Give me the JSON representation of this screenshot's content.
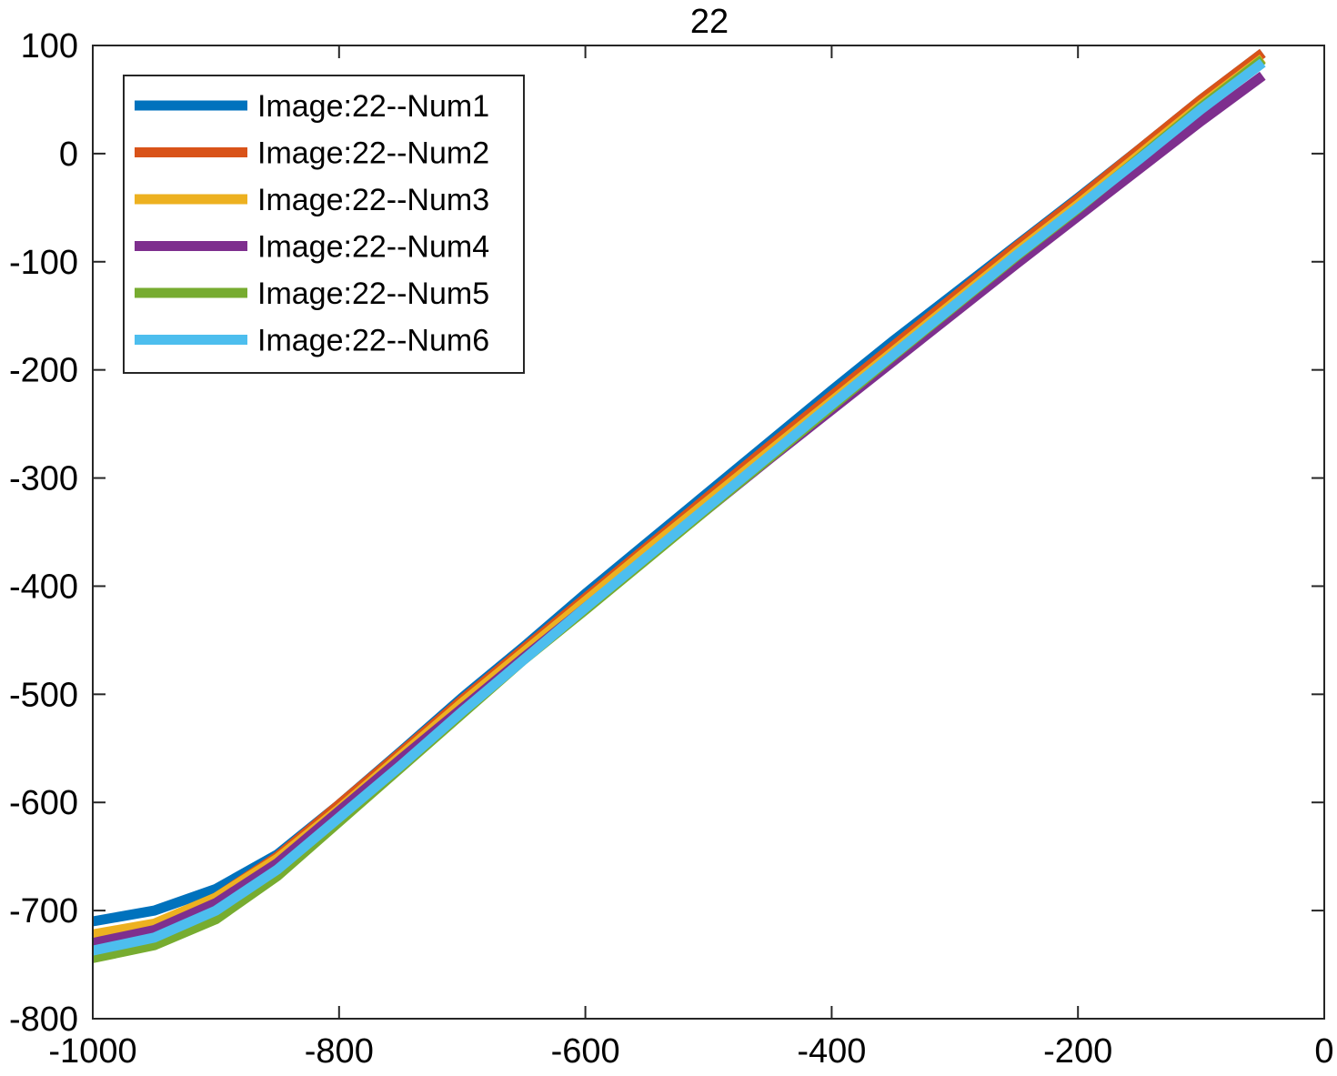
{
  "chart_data": {
    "type": "line",
    "title": "22",
    "xlabel": "",
    "ylabel": "",
    "xlim": [
      -1000,
      0
    ],
    "ylim": [
      -800,
      100
    ],
    "xticks": [
      -1000,
      -800,
      -600,
      -400,
      -200,
      0
    ],
    "yticks": [
      100,
      0,
      -100,
      -200,
      -300,
      -400,
      -500,
      -600,
      -700,
      -800
    ],
    "x": [
      -1000,
      -950,
      -900,
      -850,
      -800,
      -750,
      -700,
      -650,
      -600,
      -550,
      -500,
      -450,
      -400,
      -350,
      -300,
      -250,
      -200,
      -150,
      -100,
      -50
    ],
    "legend_position": "top-left",
    "grid": false,
    "series": [
      {
        "name": "Image:22--Num1",
        "color": "#0072BD",
        "values": [
          -710,
          -700,
          -680,
          -648,
          -602,
          -553,
          -503,
          -456,
          -407,
          -360,
          -313,
          -266,
          -219,
          -173,
          -129,
          -85,
          -41,
          4,
          50,
          93
        ]
      },
      {
        "name": "Image:22--Num2",
        "color": "#D95319",
        "values": [
          -726,
          -714,
          -688,
          -650,
          -602,
          -554,
          -505,
          -458,
          -411,
          -364,
          -317,
          -270,
          -224,
          -178,
          -132,
          -86,
          -42,
          4,
          50,
          93
        ]
      },
      {
        "name": "Image:22--Num3",
        "color": "#EDB120",
        "values": [
          -722,
          -712,
          -688,
          -652,
          -606,
          -557,
          -508,
          -461,
          -414,
          -367,
          -321,
          -275,
          -229,
          -183,
          -137,
          -91,
          -47,
          -1,
          45,
          88
        ]
      },
      {
        "name": "Image:22--Num4",
        "color": "#7E2F8E",
        "values": [
          -730,
          -718,
          -693,
          -656,
          -608,
          -560,
          -513,
          -466,
          -420,
          -374,
          -328,
          -282,
          -237,
          -192,
          -147,
          -102,
          -58,
          -14,
          30,
          72
        ]
      },
      {
        "name": "Image:22--Num5",
        "color": "#77AC30",
        "values": [
          -744,
          -732,
          -708,
          -668,
          -618,
          -568,
          -518,
          -468,
          -422,
          -375,
          -328,
          -281,
          -234,
          -187,
          -141,
          -95,
          -51,
          -4,
          43,
          87
        ]
      },
      {
        "name": "Image:22--Num6",
        "color": "#4DBEEE",
        "values": [
          -737,
          -725,
          -700,
          -662,
          -614,
          -566,
          -516,
          -468,
          -420,
          -373,
          -326,
          -279,
          -232,
          -186,
          -140,
          -94,
          -50,
          -5,
          41,
          84
        ]
      }
    ]
  }
}
